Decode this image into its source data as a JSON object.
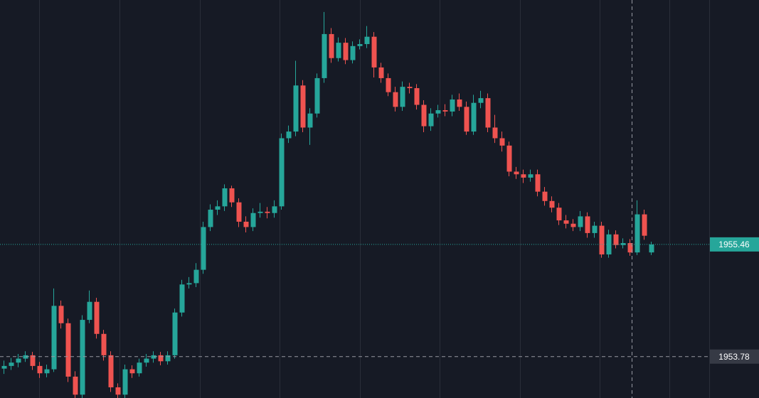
{
  "chart_data": {
    "type": "candlestick",
    "colors": {
      "up": "#26a69a",
      "down": "#ef5350"
    },
    "ylim": [
      1953.16,
      1959.12
    ],
    "last_price": 1955.46,
    "crosshair_price": 1953.78,
    "open": [
      1953.6,
      1953.64,
      1953.69,
      1953.75,
      1953.8,
      1953.64,
      1953.53,
      1953.59,
      1954.54,
      1954.28,
      1953.48,
      1953.21,
      1954.33,
      1954.6,
      1954.12,
      1953.8,
      1953.32,
      1953.21,
      1953.59,
      1953.53,
      1953.69,
      1953.75,
      1953.8,
      1953.71,
      1953.8,
      1954.44,
      1954.86,
      1954.88,
      1955.08,
      1955.72,
      1955.98,
      1956.03,
      1956.3,
      1956.09,
      1955.8,
      1955.72,
      1955.93,
      1955.95,
      1955.93,
      1956.03,
      1957.05,
      1957.15,
      1957.84,
      1957.21,
      1957.42,
      1957.95,
      1958.61,
      1958.25,
      1958.48,
      1958.22,
      1958.43,
      1958.46,
      1958.57,
      1958.11,
      1957.95,
      1957.74,
      1957.52,
      1957.82,
      1957.8,
      1957.55,
      1957.23,
      1957.42,
      1957.47,
      1957.45,
      1957.63,
      1957.52,
      1957.15,
      1957.58,
      1957.65,
      1957.21,
      1957.05,
      1956.94,
      1956.55,
      1956.51,
      1956.46,
      1956.51,
      1956.25,
      1956.11,
      1956.01,
      1955.82,
      1955.77,
      1955.72,
      1955.88,
      1955.63,
      1955.74,
      1955.31,
      1955.61,
      1955.45,
      1955.48,
      1955.34,
      1955.91,
      1955.34
    ],
    "high": [
      1953.72,
      1953.76,
      1953.82,
      1953.86,
      1953.85,
      1953.7,
      1953.66,
      1954.8,
      1954.62,
      1954.35,
      1953.56,
      1954.4,
      1954.77,
      1954.66,
      1954.18,
      1953.86,
      1953.38,
      1953.66,
      1953.65,
      1953.75,
      1953.82,
      1953.86,
      1953.85,
      1953.86,
      1954.5,
      1954.93,
      1954.97,
      1955.18,
      1955.8,
      1956.06,
      1956.12,
      1956.36,
      1956.34,
      1956.15,
      1955.88,
      1956.0,
      1956.08,
      1956.02,
      1956.12,
      1957.12,
      1957.24,
      1958.21,
      1957.92,
      1957.5,
      1958.02,
      1958.94,
      1958.7,
      1958.56,
      1958.55,
      1958.5,
      1958.53,
      1958.73,
      1958.64,
      1958.18,
      1958.02,
      1957.82,
      1957.9,
      1957.88,
      1957.86,
      1957.62,
      1957.5,
      1957.55,
      1957.56,
      1957.7,
      1957.72,
      1957.6,
      1957.7,
      1957.76,
      1957.72,
      1957.4,
      1957.15,
      1957.0,
      1956.62,
      1956.58,
      1956.58,
      1956.58,
      1956.32,
      1956.18,
      1956.08,
      1955.9,
      1955.84,
      1955.96,
      1955.94,
      1955.8,
      1955.8,
      1955.68,
      1955.67,
      1955.55,
      1955.54,
      1956.12,
      1955.98,
      1955.5
    ],
    "low": [
      1953.52,
      1953.58,
      1953.62,
      1953.7,
      1953.58,
      1953.46,
      1953.47,
      1953.55,
      1954.2,
      1953.4,
      1953.16,
      1953.16,
      1954.28,
      1954.05,
      1953.72,
      1953.25,
      1953.16,
      1953.16,
      1953.46,
      1953.48,
      1953.63,
      1953.69,
      1953.65,
      1953.66,
      1953.75,
      1954.38,
      1954.8,
      1954.82,
      1955.02,
      1955.66,
      1955.9,
      1955.96,
      1956.02,
      1955.72,
      1955.64,
      1955.66,
      1955.86,
      1955.85,
      1955.86,
      1955.98,
      1956.98,
      1957.08,
      1957.14,
      1956.95,
      1957.36,
      1957.88,
      1958.18,
      1958.2,
      1958.16,
      1958.17,
      1958.38,
      1958.4,
      1957.96,
      1957.88,
      1957.68,
      1957.45,
      1957.46,
      1957.72,
      1957.48,
      1957.14,
      1957.16,
      1957.36,
      1957.38,
      1957.38,
      1957.46,
      1957.1,
      1957.1,
      1957.5,
      1957.14,
      1956.98,
      1956.85,
      1956.48,
      1956.44,
      1956.38,
      1956.4,
      1956.18,
      1956.04,
      1955.94,
      1955.75,
      1955.7,
      1955.66,
      1955.66,
      1955.56,
      1955.56,
      1955.26,
      1955.26,
      1955.4,
      1955.4,
      1955.29,
      1955.3,
      1955.53,
      1955.3
    ],
    "close": [
      1953.64,
      1953.69,
      1953.75,
      1953.8,
      1953.64,
      1953.53,
      1953.59,
      1954.54,
      1954.28,
      1953.48,
      1953.21,
      1954.33,
      1954.6,
      1954.12,
      1953.8,
      1953.32,
      1953.21,
      1953.59,
      1953.53,
      1953.69,
      1953.75,
      1953.8,
      1953.71,
      1953.8,
      1954.44,
      1954.86,
      1954.88,
      1955.08,
      1955.72,
      1955.98,
      1956.03,
      1956.3,
      1956.09,
      1955.8,
      1955.72,
      1955.93,
      1955.95,
      1955.93,
      1956.03,
      1957.05,
      1957.15,
      1957.84,
      1957.21,
      1957.42,
      1957.95,
      1958.61,
      1958.25,
      1958.48,
      1958.22,
      1958.43,
      1958.46,
      1958.57,
      1958.11,
      1957.95,
      1957.74,
      1957.52,
      1957.82,
      1957.8,
      1957.55,
      1957.23,
      1957.42,
      1957.47,
      1957.45,
      1957.63,
      1957.52,
      1957.15,
      1957.58,
      1957.65,
      1957.21,
      1957.05,
      1956.94,
      1956.55,
      1956.51,
      1956.46,
      1956.51,
      1956.25,
      1956.11,
      1956.01,
      1955.82,
      1955.77,
      1955.72,
      1955.88,
      1955.63,
      1955.74,
      1955.31,
      1955.61,
      1955.45,
      1955.48,
      1955.34,
      1955.91,
      1955.59,
      1955.46
    ]
  }
}
